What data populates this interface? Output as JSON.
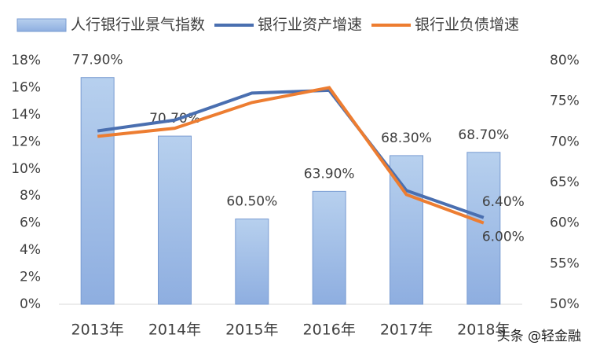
{
  "chart_data": {
    "type": "bar-line",
    "categories": [
      "2013年",
      "2014年",
      "2015年",
      "2016年",
      "2017年",
      "2018年"
    ],
    "series": [
      {
        "name": "人行银行业景气指数",
        "type": "bar",
        "axis": "y2",
        "color": "#a7c3e8",
        "values": [
          77.9,
          70.7,
          60.5,
          63.9,
          68.3,
          68.7
        ],
        "value_labels": [
          "77.90%",
          "70.70%",
          "60.50%",
          "63.90%",
          "68.30%",
          "68.70%"
        ]
      },
      {
        "name": "银行业资产增速",
        "type": "line",
        "color": "#4a6fb0",
        "values": [
          12.8,
          13.6,
          15.6,
          15.8,
          8.4,
          6.4
        ],
        "value_labels": [
          null,
          null,
          null,
          null,
          null,
          "6.40%"
        ]
      },
      {
        "name": "银行业负债增速",
        "type": "line",
        "color": "#ed7d31",
        "values": [
          12.4,
          13.0,
          14.9,
          16.0,
          8.1,
          6.0
        ],
        "value_labels": [
          null,
          null,
          null,
          null,
          null,
          "6.00%"
        ]
      }
    ],
    "ylim": [
      0,
      18
    ],
    "yticks": [
      {
        "value": 0,
        "label": "0%"
      },
      {
        "value": 2,
        "label": "2%"
      },
      {
        "value": 4,
        "label": "4%"
      },
      {
        "value": 6,
        "label": "6%"
      },
      {
        "value": 8,
        "label": "8%"
      },
      {
        "value": 10,
        "label": "10%"
      },
      {
        "value": 12,
        "label": "12%"
      },
      {
        "value": 14,
        "label": "14%"
      },
      {
        "value": 16,
        "label": "16%"
      },
      {
        "value": 18,
        "label": "18%"
      }
    ],
    "y2lim": [
      50,
      80
    ],
    "y2ticks": [
      {
        "value": 50,
        "label": "50%"
      },
      {
        "value": 55,
        "label": "55%"
      },
      {
        "value": 60,
        "label": "60%"
      },
      {
        "value": 65,
        "label": "65%"
      },
      {
        "value": 70,
        "label": "70%"
      },
      {
        "value": 75,
        "label": "75%"
      },
      {
        "value": 80,
        "label": "80%"
      }
    ],
    "legend": "top",
    "watermark": "头条 @轻金融"
  }
}
